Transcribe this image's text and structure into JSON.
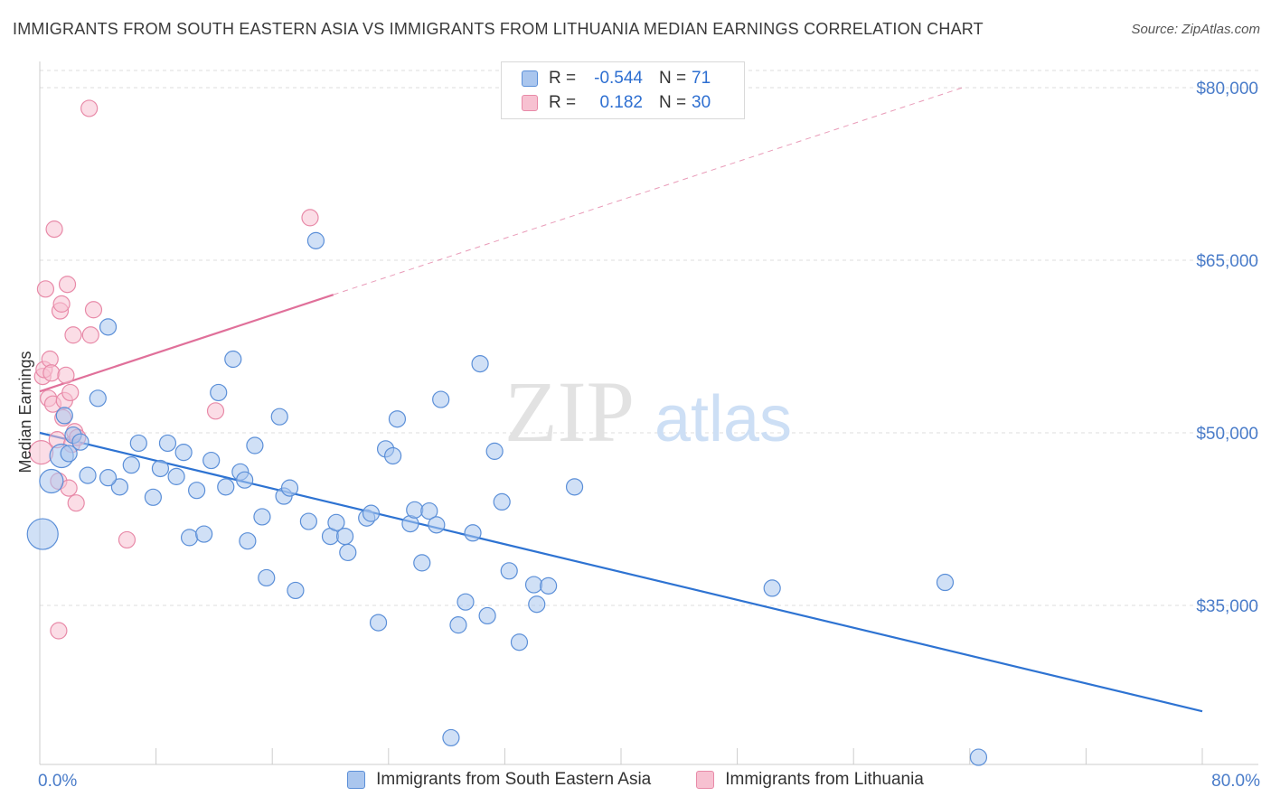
{
  "title": "IMMIGRANTS FROM SOUTH EASTERN ASIA VS IMMIGRANTS FROM LITHUANIA MEDIAN EARNINGS CORRELATION CHART",
  "source": "Source: ZipAtlas.com",
  "watermark": {
    "zip": "ZIP",
    "atlas": "atlas"
  },
  "colors": {
    "blue_fill": "#aac6ee",
    "blue_stroke": "#5b8fd8",
    "blue_line": "#2e73d2",
    "pink_fill": "#f7c1d1",
    "pink_stroke": "#e88aa8",
    "pink_line": "#e0709a",
    "grid": "#dddddd",
    "tick_text": "#4a7cc9"
  },
  "stats_legend": {
    "rows": [
      {
        "r_label": "R =",
        "r_value": "-0.544",
        "n_label": "N =",
        "n_value": "71"
      },
      {
        "r_label": "R =",
        "r_value": "0.182",
        "n_label": "N =",
        "n_value": "30"
      }
    ]
  },
  "chart_data": {
    "type": "scatter",
    "title": "IMMIGRANTS FROM SOUTH EASTERN ASIA VS IMMIGRANTS FROM LITHUANIA MEDIAN EARNINGS CORRELATION CHART",
    "xlabel": "",
    "ylabel": "Median Earnings",
    "xlim": [
      0,
      80
    ],
    "ylim": [
      20000,
      82000
    ],
    "x_tick_labels": [
      "0.0%",
      "80.0%"
    ],
    "y_ticks": [
      35000,
      50000,
      65000,
      80000
    ],
    "y_tick_labels": [
      "$35,000",
      "$50,000",
      "$65,000",
      "$80,000"
    ],
    "grid": true,
    "legend_position": "bottom",
    "series": [
      {
        "name": "Immigrants from South Eastern Asia",
        "color": "#aac6ee",
        "trend": {
          "x": [
            0,
            80
          ],
          "y": [
            50000,
            25800
          ],
          "dashed_extension": false
        },
        "points": [
          [
            0.2,
            41200,
            3
          ],
          [
            0.8,
            45800,
            2
          ],
          [
            1.5,
            48000,
            2
          ],
          [
            1.7,
            51500,
            1
          ],
          [
            2.3,
            49800,
            1
          ],
          [
            2.8,
            49200,
            1
          ],
          [
            3.3,
            46300,
            1
          ],
          [
            4.0,
            53000,
            1
          ],
          [
            4.7,
            59200,
            1
          ],
          [
            5.5,
            45300,
            1
          ],
          [
            6.3,
            47200,
            1
          ],
          [
            6.8,
            49100,
            1
          ],
          [
            7.8,
            44400,
            1
          ],
          [
            8.3,
            46900,
            1
          ],
          [
            8.8,
            49100,
            1
          ],
          [
            9.4,
            46200,
            1
          ],
          [
            9.9,
            48300,
            1
          ],
          [
            10.3,
            40900,
            1
          ],
          [
            10.8,
            45000,
            1
          ],
          [
            11.3,
            41200,
            1
          ],
          [
            11.8,
            47600,
            1
          ],
          [
            12.3,
            53500,
            1
          ],
          [
            12.8,
            45300,
            1
          ],
          [
            13.3,
            56400,
            1
          ],
          [
            13.8,
            46600,
            1
          ],
          [
            14.3,
            40600,
            1
          ],
          [
            14.8,
            48900,
            1
          ],
          [
            15.3,
            42700,
            1
          ],
          [
            15.6,
            37400,
            1
          ],
          [
            16.5,
            51400,
            1
          ],
          [
            16.8,
            44500,
            1
          ],
          [
            17.2,
            45200,
            1
          ],
          [
            17.6,
            36300,
            1
          ],
          [
            18.5,
            42300,
            1
          ],
          [
            19.0,
            66700,
            1
          ],
          [
            20.0,
            41000,
            1
          ],
          [
            20.4,
            42200,
            1
          ],
          [
            21.0,
            41000,
            1
          ],
          [
            21.2,
            39600,
            1
          ],
          [
            22.5,
            42600,
            1
          ],
          [
            22.8,
            43000,
            1
          ],
          [
            23.3,
            33500,
            1
          ],
          [
            23.8,
            48600,
            1
          ],
          [
            24.3,
            48000,
            1
          ],
          [
            24.6,
            51200,
            1
          ],
          [
            25.5,
            42100,
            1
          ],
          [
            25.8,
            43300,
            1
          ],
          [
            26.3,
            38700,
            1
          ],
          [
            26.8,
            43200,
            1
          ],
          [
            27.3,
            42000,
            1
          ],
          [
            27.6,
            52900,
            1
          ],
          [
            28.3,
            23500,
            1
          ],
          [
            28.8,
            33300,
            1
          ],
          [
            29.3,
            35300,
            1
          ],
          [
            29.8,
            41300,
            1
          ],
          [
            30.3,
            56000,
            1
          ],
          [
            30.8,
            34100,
            1
          ],
          [
            31.3,
            48400,
            1
          ],
          [
            31.8,
            44000,
            1
          ],
          [
            32.3,
            38000,
            1
          ],
          [
            33.0,
            31800,
            1
          ],
          [
            34.0,
            36800,
            1
          ],
          [
            34.2,
            35100,
            1
          ],
          [
            35.0,
            36700,
            1
          ],
          [
            36.8,
            45300,
            1
          ],
          [
            50.4,
            36500,
            1
          ],
          [
            62.3,
            37000,
            1
          ],
          [
            64.6,
            21800,
            1
          ],
          [
            2.0,
            48200,
            1
          ],
          [
            4.7,
            46100,
            1
          ],
          [
            14.1,
            45900,
            1
          ]
        ]
      },
      {
        "name": "Immigrants from Lithuania",
        "color": "#f7c1d1",
        "trend": {
          "x": [
            0,
            20.2
          ],
          "y": [
            53600,
            62000
          ],
          "dashed_to": [
            63.5,
            80000
          ]
        },
        "points": [
          [
            0.1,
            48300,
            2
          ],
          [
            0.2,
            54900,
            1
          ],
          [
            0.3,
            55500,
            1
          ],
          [
            0.4,
            62500,
            1
          ],
          [
            0.6,
            53000,
            1
          ],
          [
            0.7,
            56400,
            1
          ],
          [
            0.8,
            55200,
            1
          ],
          [
            0.9,
            52500,
            1
          ],
          [
            1.0,
            67700,
            1
          ],
          [
            1.2,
            49400,
            1
          ],
          [
            1.3,
            45800,
            1
          ],
          [
            1.4,
            60600,
            1
          ],
          [
            1.5,
            61200,
            1
          ],
          [
            1.6,
            51300,
            1
          ],
          [
            1.7,
            52800,
            1
          ],
          [
            1.8,
            55000,
            1
          ],
          [
            1.9,
            62900,
            1
          ],
          [
            2.0,
            45200,
            1
          ],
          [
            2.1,
            53500,
            1
          ],
          [
            2.2,
            49000,
            1
          ],
          [
            2.3,
            58500,
            1
          ],
          [
            2.4,
            50100,
            1
          ],
          [
            2.5,
            43900,
            1
          ],
          [
            2.6,
            49600,
            1
          ],
          [
            3.4,
            78200,
            1
          ],
          [
            3.5,
            58500,
            1
          ],
          [
            3.7,
            60700,
            1
          ],
          [
            1.3,
            32800,
            1
          ],
          [
            6.0,
            40700,
            1
          ],
          [
            12.1,
            51900,
            1
          ],
          [
            18.6,
            68700,
            1
          ]
        ]
      }
    ]
  },
  "bottom_legend": [
    {
      "label": "Immigrants from South Eastern Asia"
    },
    {
      "label": "Immigrants from Lithuania"
    }
  ]
}
